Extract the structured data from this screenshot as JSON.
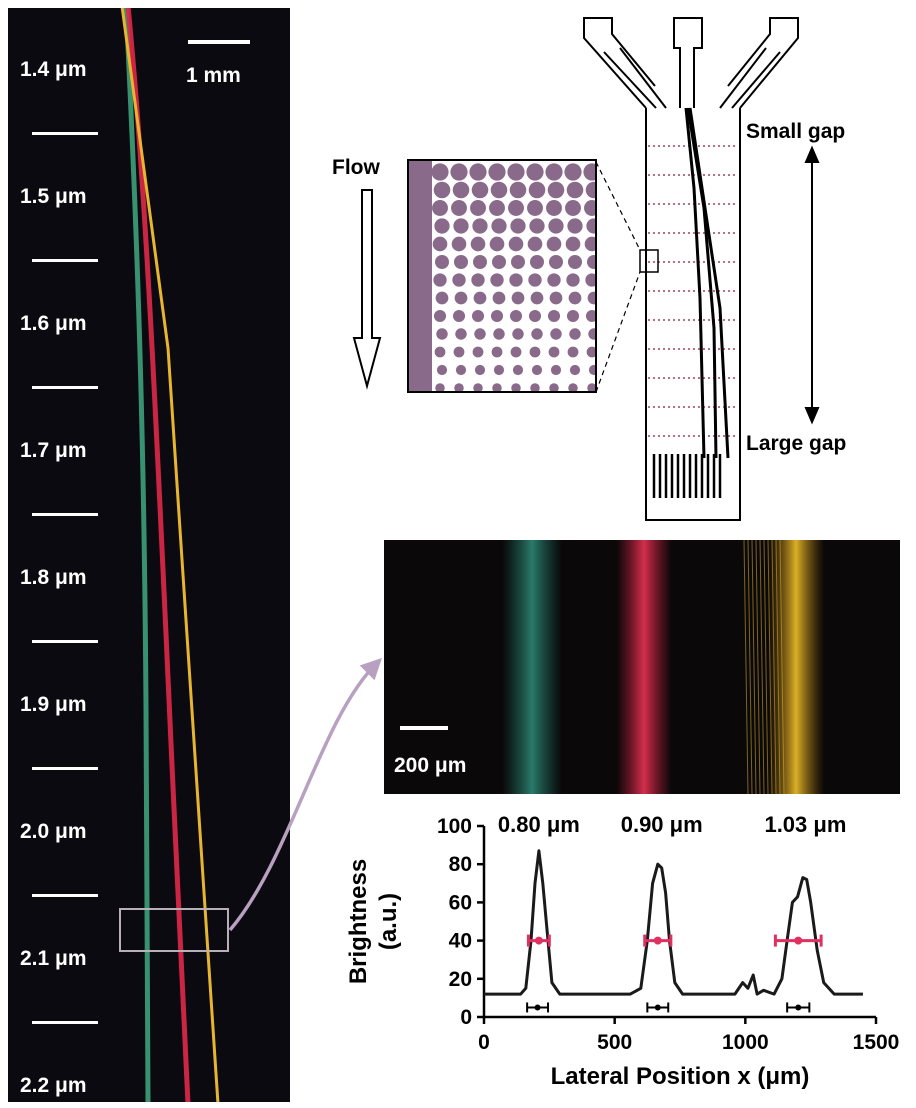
{
  "panel_a": {
    "scale_label": "1 mm",
    "gap_labels": [
      "1.4 μm",
      "1.5 μm",
      "1.6 μm",
      "1.7 μm",
      "1.8 μm",
      "1.9 μm",
      "2.0 μm",
      "2.1 μm",
      "2.2 μm"
    ]
  },
  "schematic": {
    "flow_label": "Flow",
    "small_gap_label": "Small gap",
    "large_gap_label": "Large gap"
  },
  "panel_b": {
    "scale_label": "200 μm",
    "band_colors": [
      "#2f8f7c",
      "#e03050",
      "#e0b020"
    ]
  },
  "colors": {
    "green": "#3da07a",
    "red": "#e0284a",
    "yellow": "#e8b530",
    "fwhm_bar": "#e03060",
    "arrow": "#b8a0c0",
    "post": "#8a6a8a"
  },
  "chart_data": {
    "type": "line",
    "xlabel": "Lateral Position x (μm)",
    "ylabel": "Brightness (a.u.)",
    "xlim": [
      0,
      1500
    ],
    "ylim": [
      0,
      100
    ],
    "xticks": [
      0,
      500,
      1000,
      1500
    ],
    "yticks": [
      0,
      20,
      40,
      60,
      80,
      100
    ],
    "peak_labels": [
      {
        "x": 210,
        "label": "0.80 μm"
      },
      {
        "x": 680,
        "label": "0.90 μm"
      },
      {
        "x": 1230,
        "label": "1.03 μm"
      }
    ],
    "series": [
      {
        "x": [
          0,
          140,
          160,
          180,
          195,
          210,
          225,
          245,
          260,
          290,
          560,
          600,
          625,
          645,
          665,
          680,
          695,
          710,
          730,
          760,
          960,
          990,
          1010,
          1030,
          1045,
          1070,
          1110,
          1140,
          1160,
          1180,
          1200,
          1220,
          1235,
          1250,
          1275,
          1300,
          1340,
          1450
        ],
        "y": [
          12,
          12,
          15,
          40,
          70,
          87,
          70,
          40,
          18,
          12,
          12,
          15,
          40,
          70,
          80,
          78,
          65,
          40,
          18,
          12,
          12,
          18,
          15,
          22,
          12,
          14,
          12,
          20,
          40,
          60,
          63,
          73,
          72,
          60,
          35,
          18,
          12,
          12
        ]
      }
    ],
    "fwhm_bars": [
      {
        "y": 40,
        "x_from": 170,
        "x_to": 250
      },
      {
        "y": 40,
        "x_from": 615,
        "x_to": 715
      },
      {
        "y": 40,
        "x_from": 1115,
        "x_to": 1290
      }
    ],
    "error_bars": [
      {
        "y": 5,
        "x_from": 165,
        "x_to": 245
      },
      {
        "y": 5,
        "x_from": 625,
        "x_to": 705
      },
      {
        "y": 5,
        "x_from": 1160,
        "x_to": 1245
      }
    ]
  }
}
